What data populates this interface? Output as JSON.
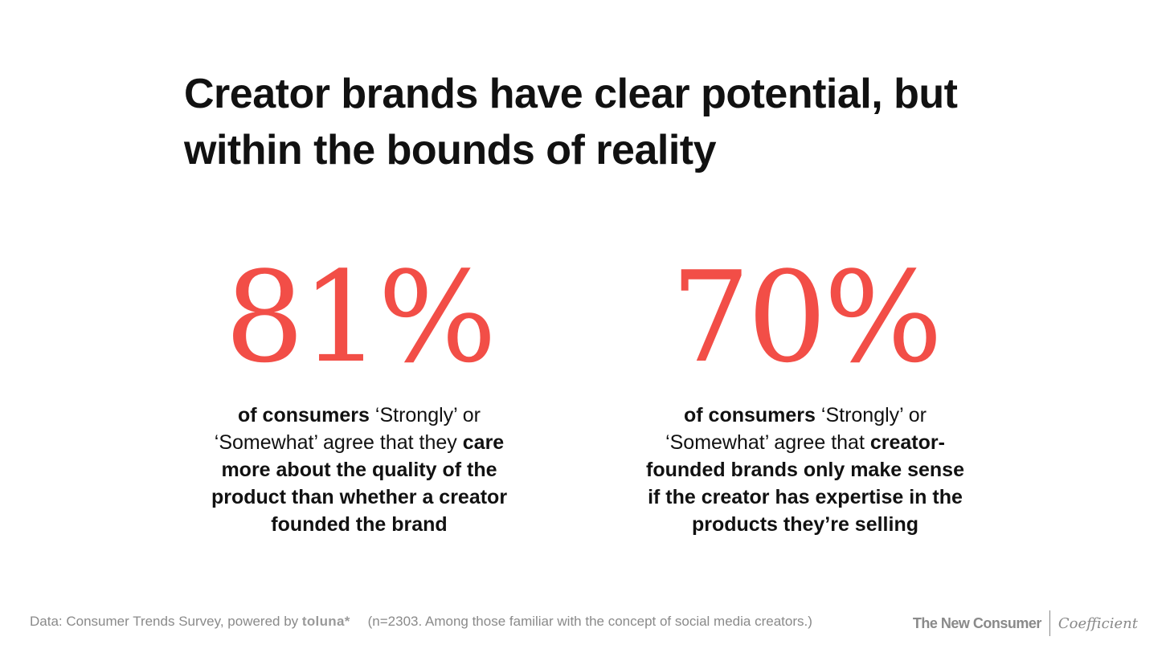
{
  "title": "Creator brands have clear potential, but within the bounds of reality",
  "stats": [
    {
      "value": "81%",
      "parts": [
        {
          "text": "of consumers",
          "bold": true
        },
        {
          "text": " ‘Strongly’ or ‘Somewhat’ agree that they ",
          "bold": false
        },
        {
          "text": "care more about the quality of the product than whether a creator founded the brand",
          "bold": true
        }
      ]
    },
    {
      "value": "70%",
      "parts": [
        {
          "text": "of consumers",
          "bold": true
        },
        {
          "text": " ‘Strongly’ or ‘Somewhat’ agree that ",
          "bold": false
        },
        {
          "text": "creator-founded brands only make sense if the creator has expertise in the products they’re selling",
          "bold": true
        }
      ]
    }
  ],
  "footer": {
    "source": "Data: Consumer Trends Survey, powered by ",
    "toluna": "toluna*",
    "sample": "(n=2303. Among those familiar with the concept of social media creators.)"
  },
  "brands": {
    "primary": "The New Consumer",
    "secondary": "Coefficient"
  },
  "colors": {
    "accent": "#f24e47",
    "text": "#111111",
    "muted": "#8a8a8a"
  }
}
